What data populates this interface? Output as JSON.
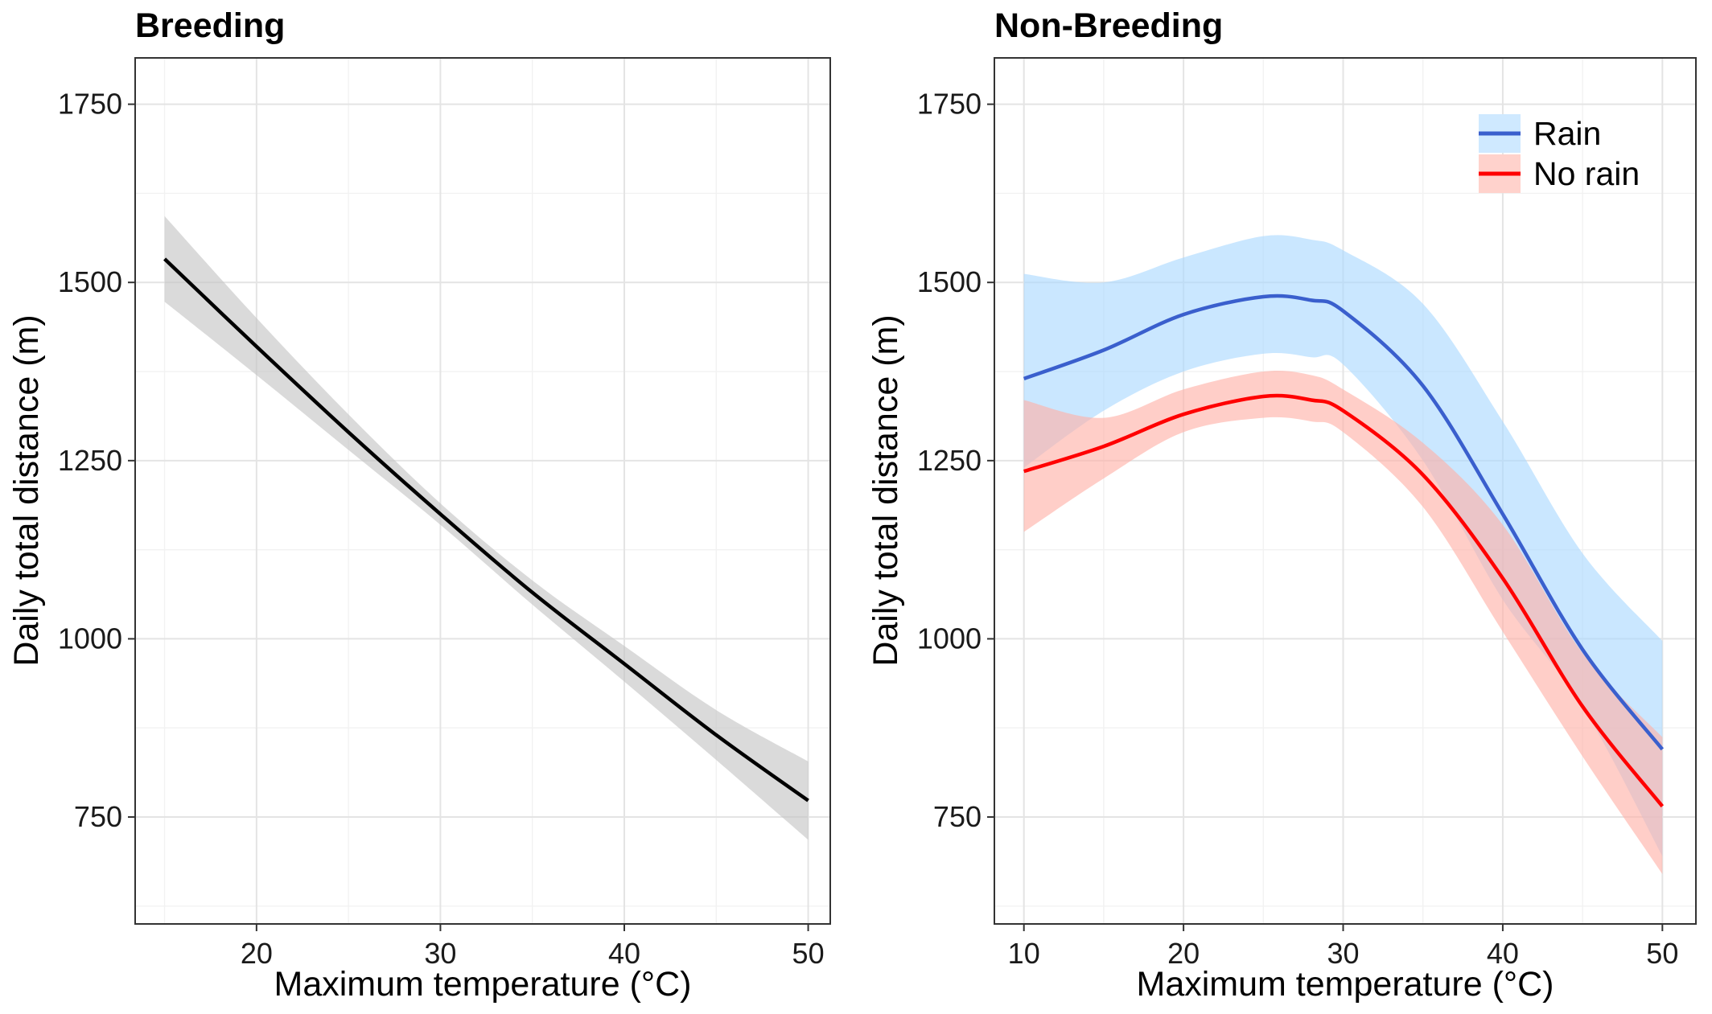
{
  "chart_data": [
    {
      "type": "line",
      "title": "Breeding",
      "xlabel": "Maximum temperature (°C)",
      "ylabel": "Daily total distance (m)",
      "xlim": [
        13.4,
        51.2
      ],
      "ylim": [
        600,
        1815
      ],
      "x_ticks": [
        20,
        30,
        40,
        50
      ],
      "y_ticks": [
        750,
        1000,
        1250,
        1500,
        1750
      ],
      "grid": true,
      "legend": "none",
      "series": [
        {
          "color": "#000000",
          "band_color": "#c4c4c4",
          "x": [
            15,
            20,
            25,
            30,
            35,
            40,
            45,
            50
          ],
          "y": [
            1533,
            1410,
            1290,
            1175,
            1065,
            965,
            865,
            773
          ],
          "lower": [
            1473,
            1370,
            1265,
            1160,
            1048,
            940,
            830,
            718
          ],
          "upper": [
            1593,
            1450,
            1315,
            1190,
            1082,
            990,
            900,
            828
          ]
        }
      ]
    },
    {
      "type": "line",
      "title": "Non-Breeding",
      "xlabel": "Maximum temperature (°C)",
      "ylabel": "Daily total distance (m)",
      "xlim": [
        8.15,
        52.1
      ],
      "ylim": [
        600,
        1815
      ],
      "x_ticks": [
        10,
        20,
        30,
        40,
        50
      ],
      "y_ticks": [
        750,
        1000,
        1250,
        1500,
        1750
      ],
      "grid": true,
      "legend": "top-right",
      "series": [
        {
          "name": "Rain",
          "color": "#3a5fcd",
          "band_color": "#aad9ff",
          "x": [
            10,
            15,
            20,
            25,
            28,
            30,
            35,
            40,
            45,
            50
          ],
          "y": [
            1365,
            1405,
            1455,
            1480,
            1475,
            1460,
            1355,
            1175,
            985,
            845
          ],
          "lower": [
            1240,
            1320,
            1375,
            1400,
            1395,
            1385,
            1250,
            1055,
            905,
            695
          ],
          "upper": [
            1512,
            1500,
            1535,
            1565,
            1560,
            1545,
            1470,
            1305,
            1120,
            997
          ]
        },
        {
          "name": "No rain",
          "color": "#ff0000",
          "band_color": "#ffb0a6",
          "x": [
            10,
            15,
            20,
            25,
            28,
            30,
            35,
            40,
            45,
            50
          ],
          "y": [
            1235,
            1270,
            1315,
            1340,
            1335,
            1320,
            1230,
            1085,
            905,
            765
          ],
          "lower": [
            1150,
            1225,
            1290,
            1310,
            1305,
            1290,
            1185,
            1010,
            835,
            670
          ],
          "upper": [
            1335,
            1310,
            1350,
            1375,
            1370,
            1350,
            1275,
            1160,
            980,
            862
          ]
        }
      ]
    }
  ]
}
